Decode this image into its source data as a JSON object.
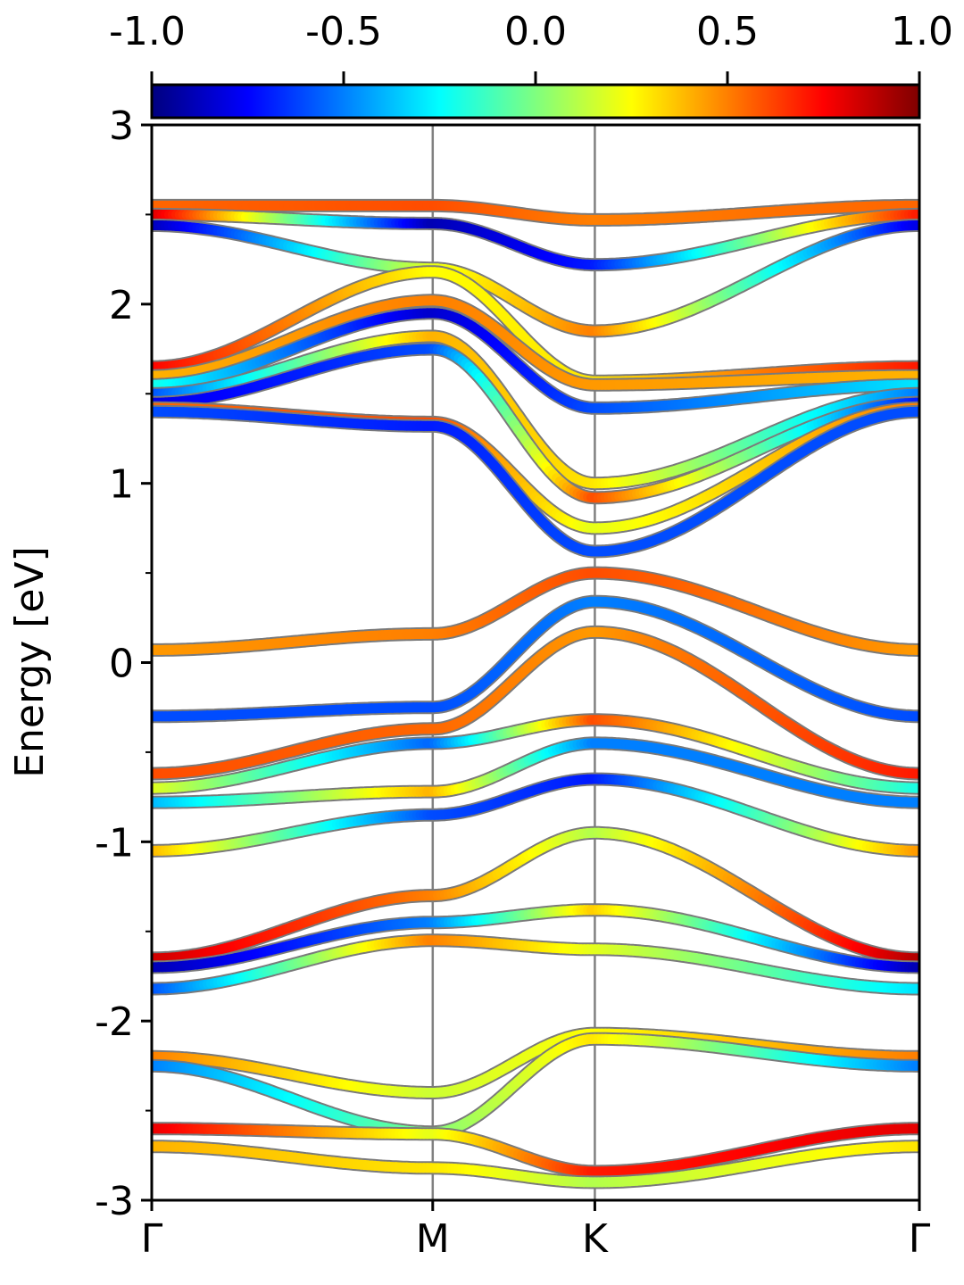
{
  "chart_data": {
    "type": "line",
    "subtype": "electronic band structure with color-mapped projection",
    "ylabel": "Energy [eV]",
    "xlabel": "",
    "ylim": [
      -3,
      3
    ],
    "y_ticks": [
      "-3",
      "-2",
      "-1",
      "0",
      "1",
      "2",
      "3"
    ],
    "y_minor_ticks": [
      -2.5,
      -1.5,
      -0.5,
      0.5,
      1.5,
      2.5
    ],
    "k_path": {
      "labels": [
        "Γ",
        "M",
        "K",
        "Γ"
      ],
      "positions": [
        0,
        1,
        1.577,
        2.732
      ]
    },
    "colorbar": {
      "colormap": "jet",
      "min": -1.0,
      "max": 1.0,
      "tick_labels": [
        "-1.0",
        "-0.5",
        "0.0",
        "0.5",
        "1.0"
      ],
      "stops": [
        "#00007f",
        "#0000ff",
        "#007fff",
        "#00ffff",
        "#7fff7f",
        "#ffff00",
        "#ff7f00",
        "#ff0000",
        "#7f0000"
      ]
    },
    "series": [
      {
        "k": [
          0,
          1,
          1.577,
          2.732
        ],
        "energy": [
          2.55,
          2.55,
          2.47,
          2.55
        ],
        "weight": [
          0.55,
          0.6,
          0.5,
          0.55
        ]
      },
      {
        "k": [
          0,
          1,
          1.577,
          2.732
        ],
        "energy": [
          2.5,
          2.45,
          2.22,
          2.5
        ],
        "weight": [
          0.85,
          -0.9,
          -0.7,
          0.7
        ]
      },
      {
        "k": [
          0,
          1,
          1.577,
          2.732
        ],
        "energy": [
          2.44,
          2.2,
          1.85,
          2.44
        ],
        "weight": [
          -0.9,
          0.2,
          0.5,
          -0.8
        ]
      },
      {
        "k": [
          0,
          1,
          1.577,
          2.732
        ],
        "energy": [
          1.65,
          2.18,
          1.57,
          1.65
        ],
        "weight": [
          0.75,
          0.25,
          0.3,
          0.7
        ]
      },
      {
        "k": [
          0,
          1,
          1.577,
          2.732
        ],
        "energy": [
          1.6,
          2.02,
          1.55,
          1.6
        ],
        "weight": [
          0.4,
          0.5,
          0.45,
          0.4
        ]
      },
      {
        "k": [
          0,
          1,
          1.577,
          2.732
        ],
        "energy": [
          1.55,
          1.95,
          1.42,
          1.55
        ],
        "weight": [
          -0.2,
          -0.85,
          -0.6,
          -0.3
        ]
      },
      {
        "k": [
          0,
          1,
          1.577,
          2.732
        ],
        "energy": [
          1.5,
          1.82,
          1.0,
          1.5
        ],
        "weight": [
          -0.6,
          0.4,
          0.3,
          -0.5
        ]
      },
      {
        "k": [
          0,
          1,
          1.577,
          2.732
        ],
        "energy": [
          1.45,
          1.75,
          0.92,
          1.45
        ],
        "weight": [
          -0.8,
          -0.6,
          0.6,
          -0.7
        ]
      },
      {
        "k": [
          0,
          1,
          1.577,
          2.732
        ],
        "energy": [
          1.42,
          1.34,
          0.75,
          1.42
        ],
        "weight": [
          0.55,
          0.6,
          0.2,
          0.5
        ]
      },
      {
        "k": [
          0,
          1,
          1.577,
          2.732
        ],
        "energy": [
          1.4,
          1.32,
          0.62,
          1.4
        ],
        "weight": [
          -0.6,
          -0.7,
          -0.6,
          -0.6
        ]
      },
      {
        "k": [
          0,
          1,
          1.577,
          2.732
        ],
        "energy": [
          0.07,
          0.16,
          0.5,
          0.07
        ],
        "weight": [
          0.45,
          0.5,
          0.6,
          0.45
        ]
      },
      {
        "k": [
          0,
          1,
          1.577,
          2.732
        ],
        "energy": [
          -0.3,
          -0.25,
          0.34,
          -0.3
        ],
        "weight": [
          -0.6,
          -0.6,
          -0.5,
          -0.6
        ]
      },
      {
        "k": [
          0,
          1,
          1.577,
          2.732
        ],
        "energy": [
          -0.62,
          -0.37,
          0.17,
          -0.62
        ],
        "weight": [
          0.6,
          0.55,
          0.45,
          0.7
        ]
      },
      {
        "k": [
          0,
          1,
          1.577,
          2.732
        ],
        "energy": [
          -0.7,
          -0.45,
          -0.32,
          -0.7
        ],
        "weight": [
          0.2,
          -0.55,
          0.6,
          -0.2
        ]
      },
      {
        "k": [
          0,
          1,
          1.577,
          2.732
        ],
        "energy": [
          -0.78,
          -0.72,
          -0.45,
          -0.78
        ],
        "weight": [
          -0.4,
          0.4,
          -0.5,
          -0.5
        ]
      },
      {
        "k": [
          0,
          1,
          1.577,
          2.732
        ],
        "energy": [
          -1.05,
          -0.85,
          -0.65,
          -1.05
        ],
        "weight": [
          0.4,
          -0.6,
          -0.7,
          0.45
        ]
      },
      {
        "k": [
          0,
          1,
          1.577,
          2.732
        ],
        "energy": [
          -1.65,
          -1.3,
          -0.95,
          -1.65
        ],
        "weight": [
          0.85,
          0.5,
          0.1,
          0.9
        ]
      },
      {
        "k": [
          0,
          1,
          1.577,
          2.732
        ],
        "energy": [
          -1.7,
          -1.45,
          -1.38,
          -1.7
        ],
        "weight": [
          -0.9,
          -0.5,
          0.35,
          -0.9
        ]
      },
      {
        "k": [
          0,
          1,
          1.577,
          2.732
        ],
        "energy": [
          -1.82,
          -1.55,
          -1.6,
          -1.82
        ],
        "weight": [
          -0.6,
          0.5,
          0.2,
          -0.3
        ]
      },
      {
        "k": [
          0,
          1,
          1.577,
          2.732
        ],
        "energy": [
          -2.2,
          -2.4,
          -2.07,
          -2.2
        ],
        "weight": [
          0.5,
          0.15,
          0.25,
          0.5
        ]
      },
      {
        "k": [
          0,
          1,
          1.577,
          2.732
        ],
        "energy": [
          -2.25,
          -2.62,
          -2.1,
          -2.25
        ],
        "weight": [
          -0.5,
          0.0,
          0.3,
          -0.5
        ]
      },
      {
        "k": [
          0,
          1,
          1.577,
          2.732
        ],
        "energy": [
          -2.6,
          -2.63,
          -2.84,
          -2.6
        ],
        "weight": [
          0.8,
          0.2,
          0.7,
          0.8
        ]
      },
      {
        "k": [
          0,
          1,
          1.577,
          2.732
        ],
        "energy": [
          -2.7,
          -2.82,
          -2.9,
          -2.7
        ],
        "weight": [
          0.4,
          0.3,
          0.1,
          0.3
        ]
      }
    ]
  }
}
